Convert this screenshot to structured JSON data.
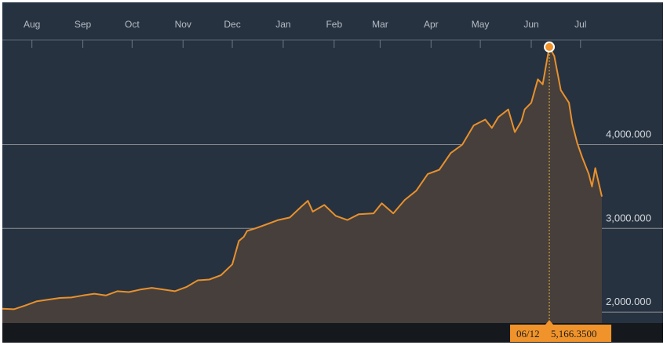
{
  "chart_data": {
    "type": "area",
    "title": "",
    "xlabel": "",
    "ylabel": "",
    "x_ticks": [
      "Aug",
      "Sep",
      "Oct",
      "Nov",
      "Dec",
      "Jan",
      "Feb",
      "Mar",
      "Apr",
      "May",
      "Jun",
      "Jul"
    ],
    "y_ticks": [
      {
        "value": 2000,
        "label": "2,000.000"
      },
      {
        "value": 3000,
        "label": "3,000.000"
      },
      {
        "value": 4000,
        "label": "4,000.000"
      }
    ],
    "ylim": [
      1870,
      5250
    ],
    "grid": true,
    "line_color": "#e8912d",
    "fill_color": "#463f3b",
    "background_color": "#273240",
    "x": [
      "2014-07-14",
      "2014-07-21",
      "2014-07-28",
      "2014-08-04",
      "2014-08-11",
      "2014-08-18",
      "2014-08-25",
      "2014-09-01",
      "2014-09-08",
      "2014-09-15",
      "2014-09-22",
      "2014-09-29",
      "2014-10-06",
      "2014-10-13",
      "2014-10-20",
      "2014-10-27",
      "2014-11-03",
      "2014-11-10",
      "2014-11-17",
      "2014-11-24",
      "2014-12-01",
      "2014-12-05",
      "2014-12-08",
      "2014-12-10",
      "2014-12-15",
      "2014-12-22",
      "2014-12-29",
      "2015-01-05",
      "2015-01-12",
      "2015-01-16",
      "2015-01-19",
      "2015-01-26",
      "2015-02-02",
      "2015-02-09",
      "2015-02-16",
      "2015-02-25",
      "2015-03-02",
      "2015-03-09",
      "2015-03-16",
      "2015-03-23",
      "2015-03-30",
      "2015-04-06",
      "2015-04-13",
      "2015-04-20",
      "2015-04-27",
      "2015-05-04",
      "2015-05-08",
      "2015-05-12",
      "2015-05-18",
      "2015-05-22",
      "2015-05-26",
      "2015-05-28",
      "2015-06-01",
      "2015-06-05",
      "2015-06-08",
      "2015-06-12",
      "2015-06-15",
      "2015-06-19",
      "2015-06-24",
      "2015-06-26",
      "2015-06-29",
      "2015-07-02",
      "2015-07-06",
      "2015-07-08",
      "2015-07-10",
      "2015-07-14"
    ],
    "values": [
      2040,
      2035,
      2080,
      2130,
      2150,
      2170,
      2175,
      2200,
      2220,
      2200,
      2250,
      2240,
      2270,
      2290,
      2270,
      2250,
      2300,
      2380,
      2390,
      2440,
      2570,
      2850,
      2900,
      2970,
      3000,
      3050,
      3100,
      3130,
      3260,
      3330,
      3200,
      3280,
      3150,
      3100,
      3170,
      3180,
      3300,
      3180,
      3340,
      3450,
      3650,
      3700,
      3900,
      4000,
      4230,
      4300,
      4200,
      4330,
      4420,
      4150,
      4280,
      4420,
      4500,
      4780,
      4720,
      5166,
      5060,
      4650,
      4500,
      4250,
      4020,
      3850,
      3650,
      3500,
      3720,
      3380
    ],
    "highlight": {
      "date": "2015-06-12",
      "value": 5166.35
    },
    "tooltip": {
      "date_label": "06/12",
      "value_label": "5,166.3500"
    }
  }
}
